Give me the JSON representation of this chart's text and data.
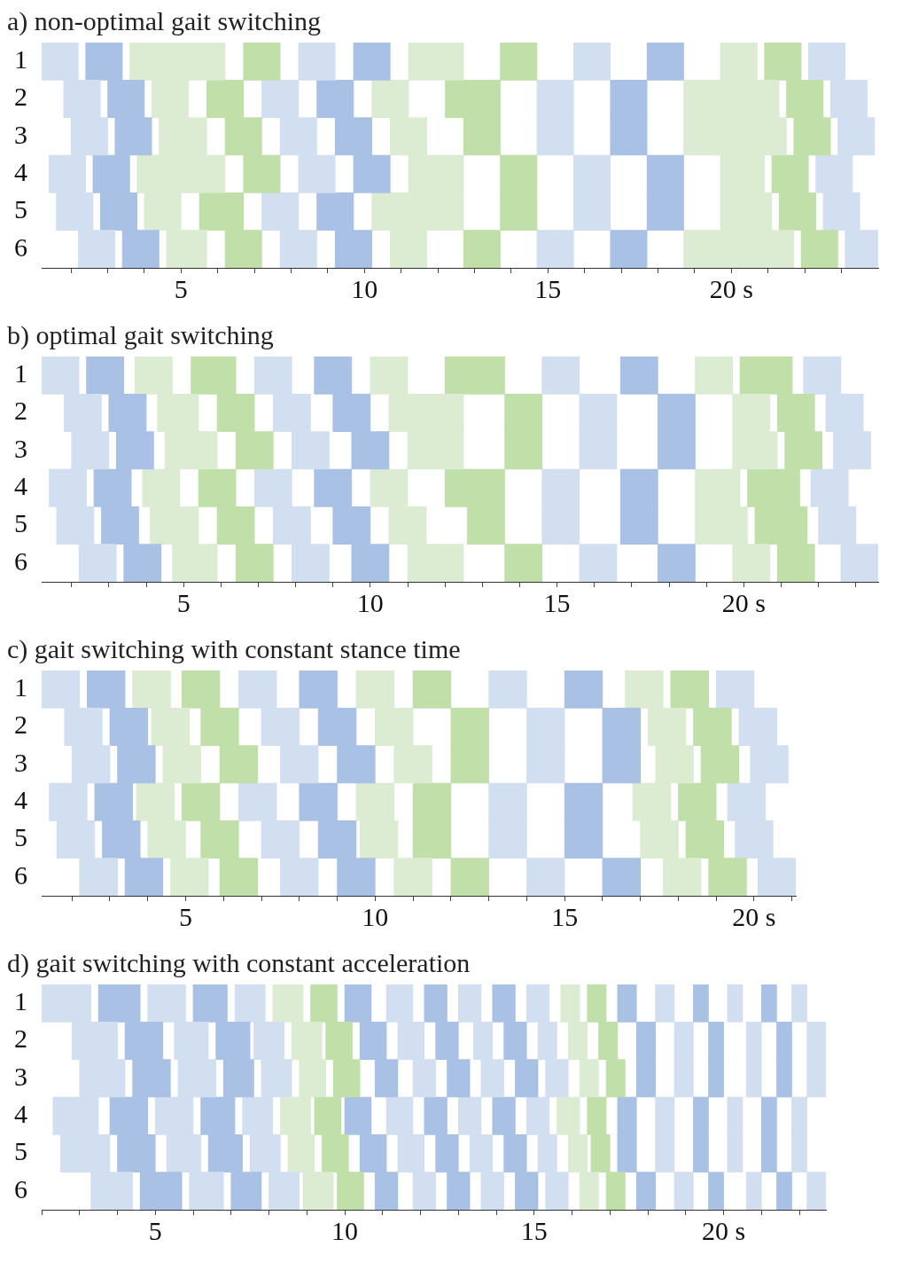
{
  "chart_data": [
    {
      "type": "bar",
      "orientation": "horizontal",
      "title": "a) non-optimal gait switching",
      "categories": [
        "1",
        "2",
        "3",
        "4",
        "5",
        "6"
      ],
      "xlim": [
        1.2,
        24.0
      ],
      "xticks": [
        {
          "value": 2,
          "label": null
        },
        {
          "value": 3,
          "label": null
        },
        {
          "value": 4,
          "label": null
        },
        5,
        {
          "value": 6,
          "label": null
        },
        {
          "value": 7,
          "label": null
        },
        {
          "value": 8,
          "label": null
        },
        {
          "value": 9,
          "label": null
        },
        10,
        {
          "value": 11,
          "label": null
        },
        {
          "value": 12,
          "label": null
        },
        {
          "value": 13,
          "label": null
        },
        {
          "value": 14,
          "label": null
        },
        15,
        {
          "value": 16,
          "label": null
        },
        {
          "value": 17,
          "label": null
        },
        {
          "value": 18,
          "label": null
        },
        {
          "value": 19,
          "label": null
        },
        {
          "value": 20,
          "label": "20 s"
        },
        {
          "value": 21,
          "label": null
        },
        {
          "value": 22,
          "label": null
        },
        {
          "value": 23,
          "label": null
        }
      ],
      "series": [
        {
          "color": "#d2dff0",
          "base": [
            1.2,
            1.8,
            2.0,
            1.4,
            1.6,
            2.2
          ],
          "values": [
            1.0,
            1.0,
            1.0,
            1.0,
            1.0,
            1.0
          ]
        },
        {
          "color": "#a9c1e4",
          "base": [
            2.4,
            3.0,
            3.2,
            2.6,
            2.8,
            3.4
          ],
          "values": [
            1.0,
            1.0,
            1.0,
            1.0,
            1.0,
            1.0
          ]
        },
        {
          "color": "#dcecd2",
          "base": [
            3.6,
            4.2,
            4.4,
            3.8,
            4.0,
            4.6
          ],
          "values": [
            2.6,
            1.0,
            1.3,
            2.4,
            1.0,
            1.1
          ]
        },
        {
          "color": "#c0dfa9",
          "base": [
            6.7,
            5.7,
            6.2,
            6.7,
            5.5,
            6.2
          ],
          "values": [
            1.0,
            1.0,
            1.0,
            1.0,
            1.2,
            1.0
          ]
        },
        {
          "color": "#d2dff0",
          "base": [
            8.2,
            7.2,
            7.7,
            8.2,
            7.2,
            7.7
          ],
          "values": [
            1.0,
            1.0,
            1.0,
            1.0,
            1.0,
            1.0
          ]
        },
        {
          "color": "#a9c1e4",
          "base": [
            9.7,
            8.7,
            9.2,
            9.7,
            8.7,
            9.2
          ],
          "values": [
            1.0,
            1.0,
            1.0,
            1.0,
            1.0,
            1.0
          ]
        },
        {
          "color": "#dcecd2",
          "base": [
            11.2,
            10.2,
            10.7,
            11.2,
            10.2,
            10.7
          ],
          "values": [
            1.5,
            1.0,
            1.0,
            1.5,
            2.5,
            1.0
          ]
        },
        {
          "color": "#c0dfa9",
          "base": [
            13.7,
            12.2,
            12.7,
            13.7,
            13.7,
            12.7
          ],
          "values": [
            1.0,
            1.5,
            1.0,
            1.0,
            1.0,
            1.0
          ]
        },
        {
          "color": "#d2dff0",
          "base": [
            15.7,
            14.7,
            14.7,
            15.7,
            15.7,
            14.7
          ],
          "values": [
            1.0,
            1.0,
            1.0,
            1.0,
            1.0,
            1.0
          ]
        },
        {
          "color": "#a9c1e4",
          "base": [
            17.7,
            16.7,
            16.7,
            17.7,
            17.7,
            16.7
          ],
          "values": [
            1.0,
            1.0,
            1.0,
            1.0,
            1.0,
            1.0
          ]
        },
        {
          "color": "#dcecd2",
          "base": [
            19.7,
            18.7,
            18.7,
            19.7,
            19.7,
            18.7
          ],
          "values": [
            1.0,
            2.6,
            2.8,
            1.2,
            1.4,
            3.0
          ]
        },
        {
          "color": "#c0dfa9",
          "base": [
            20.9,
            21.5,
            21.7,
            21.1,
            21.3,
            21.9
          ],
          "values": [
            1.0,
            1.0,
            1.0,
            1.0,
            1.0,
            1.0
          ]
        },
        {
          "color": "#d2dff0",
          "base": [
            22.1,
            22.7,
            22.9,
            22.3,
            22.5,
            23.1
          ],
          "values": [
            1.0,
            1.0,
            1.0,
            1.0,
            1.0,
            0.9
          ]
        }
      ]
    },
    {
      "type": "bar",
      "orientation": "horizontal",
      "title": "b) optimal gait switching",
      "categories": [
        "1",
        "2",
        "3",
        "4",
        "5",
        "6"
      ],
      "xlim": [
        1.2,
        23.6
      ],
      "xticks": [
        {
          "value": 2,
          "label": null
        },
        {
          "value": 3,
          "label": null
        },
        {
          "value": 4,
          "label": null
        },
        5,
        {
          "value": 6,
          "label": null
        },
        {
          "value": 7,
          "label": null
        },
        {
          "value": 8,
          "label": null
        },
        {
          "value": 9,
          "label": null
        },
        10,
        {
          "value": 11,
          "label": null
        },
        {
          "value": 12,
          "label": null
        },
        {
          "value": 13,
          "label": null
        },
        {
          "value": 14,
          "label": null
        },
        15,
        {
          "value": 16,
          "label": null
        },
        {
          "value": 17,
          "label": null
        },
        {
          "value": 18,
          "label": null
        },
        {
          "value": 19,
          "label": null
        },
        {
          "value": 20,
          "label": "20 s"
        },
        {
          "value": 21,
          "label": null
        },
        {
          "value": 22,
          "label": null
        },
        {
          "value": 23,
          "label": null
        }
      ],
      "series": [
        {
          "color": "#d2dff0",
          "base": [
            1.2,
            1.8,
            2.0,
            1.4,
            1.6,
            2.2
          ],
          "values": [
            1.0,
            1.0,
            1.0,
            1.0,
            1.0,
            1.0
          ]
        },
        {
          "color": "#a9c1e4",
          "base": [
            2.4,
            3.0,
            3.2,
            2.6,
            2.8,
            3.4
          ],
          "values": [
            1.0,
            1.0,
            1.0,
            1.0,
            1.0,
            1.0
          ]
        },
        {
          "color": "#dcecd2",
          "base": [
            3.7,
            4.3,
            4.5,
            3.9,
            4.1,
            4.7
          ],
          "values": [
            1.0,
            1.1,
            1.4,
            1.0,
            1.3,
            1.2
          ]
        },
        {
          "color": "#c0dfa9",
          "base": [
            5.2,
            5.9,
            6.4,
            5.4,
            5.9,
            6.4
          ],
          "values": [
            1.2,
            1.0,
            1.0,
            1.0,
            1.0,
            1.0
          ]
        },
        {
          "color": "#d2dff0",
          "base": [
            6.9,
            7.4,
            7.9,
            6.9,
            7.4,
            7.9
          ],
          "values": [
            1.0,
            1.0,
            1.0,
            1.0,
            1.0,
            1.0
          ]
        },
        {
          "color": "#a9c1e4",
          "base": [
            8.5,
            9.0,
            9.5,
            8.5,
            9.0,
            9.5
          ],
          "values": [
            1.0,
            1.0,
            1.0,
            1.0,
            1.0,
            1.0
          ]
        },
        {
          "color": "#dcecd2",
          "base": [
            10.0,
            10.5,
            11.0,
            10.0,
            10.5,
            11.0
          ],
          "values": [
            1.0,
            2.0,
            1.5,
            1.0,
            1.0,
            1.5
          ]
        },
        {
          "color": "#c0dfa9",
          "base": [
            12.0,
            13.6,
            13.6,
            12.0,
            12.6,
            13.6
          ],
          "values": [
            1.6,
            1.0,
            1.0,
            1.6,
            1.0,
            1.0
          ]
        },
        {
          "color": "#d2dff0",
          "base": [
            14.6,
            15.6,
            15.6,
            14.6,
            14.6,
            15.6
          ],
          "values": [
            1.0,
            1.0,
            1.0,
            1.0,
            1.0,
            1.0
          ]
        },
        {
          "color": "#a9c1e4",
          "base": [
            16.7,
            17.7,
            17.7,
            16.7,
            16.7,
            17.7
          ],
          "values": [
            1.0,
            1.0,
            1.0,
            1.0,
            1.0,
            1.0
          ]
        },
        {
          "color": "#dcecd2",
          "base": [
            18.7,
            19.7,
            19.7,
            18.7,
            18.7,
            19.7
          ],
          "values": [
            1.0,
            1.0,
            1.2,
            1.2,
            1.4,
            1.0
          ]
        },
        {
          "color": "#c0dfa9",
          "base": [
            19.9,
            20.9,
            21.1,
            20.1,
            20.3,
            20.9
          ],
          "values": [
            1.4,
            1.0,
            1.0,
            1.4,
            1.4,
            1.0
          ]
        },
        {
          "color": "#d2dff0",
          "base": [
            21.6,
            22.2,
            22.4,
            21.8,
            22.0,
            22.6
          ],
          "values": [
            1.0,
            1.0,
            1.0,
            1.0,
            1.0,
            1.0
          ]
        }
      ]
    },
    {
      "type": "bar",
      "orientation": "horizontal",
      "title": "c) gait switching with constant stance time",
      "categories": [
        "1",
        "2",
        "3",
        "4",
        "5",
        "6"
      ],
      "xlim": [
        1.2,
        21.1
      ],
      "xticks": [
        {
          "value": 2,
          "label": null
        },
        {
          "value": 3,
          "label": null
        },
        {
          "value": 4,
          "label": null
        },
        5,
        {
          "value": 6,
          "label": null
        },
        {
          "value": 7,
          "label": null
        },
        {
          "value": 8,
          "label": null
        },
        {
          "value": 9,
          "label": null
        },
        10,
        {
          "value": 11,
          "label": null
        },
        {
          "value": 12,
          "label": null
        },
        {
          "value": 13,
          "label": null
        },
        {
          "value": 14,
          "label": null
        },
        15,
        {
          "value": 16,
          "label": null
        },
        {
          "value": 17,
          "label": null
        },
        {
          "value": 18,
          "label": null
        },
        {
          "value": 19,
          "label": null
        },
        {
          "value": 20,
          "label": "20 s"
        },
        {
          "value": 21,
          "label": null
        }
      ],
      "series": [
        {
          "color": "#d2dff0",
          "base": [
            1.2,
            1.8,
            2.0,
            1.4,
            1.6,
            2.2
          ],
          "values": [
            1.0,
            1.0,
            1.0,
            1.0,
            1.0,
            1.0
          ]
        },
        {
          "color": "#a9c1e4",
          "base": [
            2.4,
            3.0,
            3.2,
            2.6,
            2.8,
            3.4
          ],
          "values": [
            1.0,
            1.0,
            1.0,
            1.0,
            1.0,
            1.0
          ]
        },
        {
          "color": "#dcecd2",
          "base": [
            3.6,
            4.1,
            4.4,
            3.7,
            4.0,
            4.6
          ],
          "values": [
            1.0,
            1.0,
            1.0,
            1.0,
            1.0,
            1.0
          ]
        },
        {
          "color": "#c0dfa9",
          "base": [
            4.9,
            5.4,
            5.9,
            4.9,
            5.4,
            5.9
          ],
          "values": [
            1.0,
            1.0,
            1.0,
            1.0,
            1.0,
            1.0
          ]
        },
        {
          "color": "#d2dff0",
          "base": [
            6.4,
            7.0,
            7.5,
            6.4,
            7.0,
            7.5
          ],
          "values": [
            1.0,
            1.0,
            1.0,
            1.0,
            1.0,
            1.0
          ]
        },
        {
          "color": "#a9c1e4",
          "base": [
            8.0,
            8.5,
            9.0,
            8.0,
            8.5,
            9.0
          ],
          "values": [
            1.0,
            1.0,
            1.0,
            1.0,
            1.0,
            1.0
          ]
        },
        {
          "color": "#dcecd2",
          "base": [
            9.5,
            10.0,
            10.5,
            9.5,
            9.6,
            10.5
          ],
          "values": [
            1.0,
            1.0,
            1.0,
            1.0,
            1.0,
            1.0
          ]
        },
        {
          "color": "#c0dfa9",
          "base": [
            11.0,
            12.0,
            12.0,
            11.0,
            11.0,
            12.0
          ],
          "values": [
            1.0,
            1.0,
            1.0,
            1.0,
            1.0,
            1.0
          ]
        },
        {
          "color": "#d2dff0",
          "base": [
            13.0,
            14.0,
            14.0,
            13.0,
            13.0,
            14.0
          ],
          "values": [
            1.0,
            1.0,
            1.0,
            1.0,
            1.0,
            1.0
          ]
        },
        {
          "color": "#a9c1e4",
          "base": [
            15.0,
            16.0,
            16.0,
            15.0,
            15.0,
            16.0
          ],
          "values": [
            1.0,
            1.0,
            1.0,
            1.0,
            1.0,
            1.0
          ]
        },
        {
          "color": "#dcecd2",
          "base": [
            16.6,
            17.2,
            17.4,
            16.8,
            17.0,
            17.6
          ],
          "values": [
            1.0,
            1.0,
            1.0,
            1.0,
            1.0,
            1.0
          ]
        },
        {
          "color": "#c0dfa9",
          "base": [
            17.8,
            18.4,
            18.6,
            18.0,
            18.2,
            18.8
          ],
          "values": [
            1.0,
            1.0,
            1.0,
            1.0,
            1.0,
            1.0
          ]
        },
        {
          "color": "#d2dff0",
          "base": [
            19.0,
            19.6,
            19.9,
            19.3,
            19.5,
            20.1
          ],
          "values": [
            1.0,
            1.0,
            1.0,
            1.0,
            1.0,
            1.0
          ]
        }
      ]
    },
    {
      "type": "bar",
      "orientation": "horizontal",
      "title": "d) gait switching with constant acceleration",
      "categories": [
        "1",
        "2",
        "3",
        "4",
        "5",
        "6"
      ],
      "xlim": [
        2.0,
        22.7
      ],
      "xticks": [
        {
          "value": 2,
          "label": null
        },
        {
          "value": 3,
          "label": null
        },
        {
          "value": 4,
          "label": null
        },
        5,
        {
          "value": 6,
          "label": null
        },
        {
          "value": 7,
          "label": null
        },
        {
          "value": 8,
          "label": null
        },
        {
          "value": 9,
          "label": null
        },
        10,
        {
          "value": 11,
          "label": null
        },
        {
          "value": 12,
          "label": null
        },
        {
          "value": 13,
          "label": null
        },
        {
          "value": 14,
          "label": null
        },
        15,
        {
          "value": 16,
          "label": null
        },
        {
          "value": 17,
          "label": null
        },
        {
          "value": 18,
          "label": null
        },
        {
          "value": 19,
          "label": null
        },
        {
          "value": 20,
          "label": "20 s"
        },
        {
          "value": 21,
          "label": null
        },
        {
          "value": 22,
          "label": null
        }
      ],
      "series": [
        {
          "color": "#d2dff0",
          "base": [
            2.0,
            2.8,
            3.0,
            2.3,
            2.5,
            3.3
          ],
          "values": [
            1.3,
            1.2,
            1.2,
            1.2,
            1.3,
            1.1
          ]
        },
        {
          "color": "#a9c1e4",
          "base": [
            3.5,
            4.2,
            4.4,
            3.8,
            4.0,
            4.6
          ],
          "values": [
            1.1,
            1.0,
            1.0,
            1.0,
            1.0,
            1.1
          ]
        },
        {
          "color": "#d2dff0",
          "base": [
            4.8,
            5.5,
            5.6,
            5.0,
            5.3,
            5.9
          ],
          "values": [
            1.0,
            0.9,
            1.0,
            1.0,
            0.9,
            0.9
          ]
        },
        {
          "color": "#a9c1e4",
          "base": [
            6.0,
            6.6,
            6.8,
            6.2,
            6.4,
            7.0
          ],
          "values": [
            0.9,
            0.9,
            0.8,
            0.9,
            0.9,
            0.8
          ]
        },
        {
          "color": "#d2dff0",
          "base": [
            7.1,
            7.6,
            7.8,
            7.3,
            7.5,
            8.0
          ],
          "values": [
            0.8,
            0.8,
            0.8,
            0.8,
            0.8,
            0.8
          ]
        },
        {
          "color": "#dcecd2",
          "base": [
            8.1,
            8.6,
            8.8,
            8.3,
            8.5,
            8.9
          ],
          "values": [
            0.8,
            0.8,
            0.7,
            0.8,
            0.7,
            0.8
          ]
        },
        {
          "color": "#c0dfa9",
          "base": [
            9.1,
            9.5,
            9.7,
            9.2,
            9.4,
            9.8
          ],
          "values": [
            0.7,
            0.7,
            0.7,
            0.7,
            0.7,
            0.7
          ]
        },
        {
          "color": "#a9c1e4",
          "base": [
            10.0,
            10.4,
            10.8,
            10.0,
            10.4,
            10.8
          ],
          "values": [
            0.7,
            0.7,
            0.6,
            0.7,
            0.7,
            0.6
          ]
        },
        {
          "color": "#d2dff0",
          "base": [
            11.1,
            11.4,
            11.8,
            11.1,
            11.4,
            11.8
          ],
          "values": [
            0.7,
            0.7,
            0.6,
            0.7,
            0.7,
            0.6
          ]
        },
        {
          "color": "#a9c1e4",
          "base": [
            12.1,
            12.4,
            12.7,
            12.1,
            12.4,
            12.7
          ],
          "values": [
            0.6,
            0.6,
            0.6,
            0.6,
            0.6,
            0.6
          ]
        },
        {
          "color": "#d2dff0",
          "base": [
            13.0,
            13.4,
            13.6,
            13.0,
            13.3,
            13.6
          ],
          "values": [
            0.6,
            0.5,
            0.6,
            0.6,
            0.6,
            0.6
          ]
        },
        {
          "color": "#a9c1e4",
          "base": [
            13.9,
            14.2,
            14.5,
            13.9,
            14.2,
            14.5
          ],
          "values": [
            0.6,
            0.6,
            0.6,
            0.6,
            0.6,
            0.6
          ]
        },
        {
          "color": "#d2dff0",
          "base": [
            14.8,
            15.1,
            15.3,
            14.8,
            15.1,
            15.3
          ],
          "values": [
            0.6,
            0.5,
            0.6,
            0.6,
            0.5,
            0.6
          ]
        },
        {
          "color": "#dcecd2",
          "base": [
            15.7,
            15.9,
            16.2,
            15.6,
            15.9,
            16.2
          ],
          "values": [
            0.5,
            0.5,
            0.5,
            0.6,
            0.5,
            0.5
          ]
        },
        {
          "color": "#c0dfa9",
          "base": [
            16.4,
            16.7,
            16.9,
            16.4,
            16.5,
            16.9
          ],
          "values": [
            0.5,
            0.5,
            0.5,
            0.5,
            0.5,
            0.5
          ]
        },
        {
          "color": "#a9c1e4",
          "base": [
            17.2,
            17.7,
            17.7,
            17.2,
            17.2,
            17.7
          ],
          "values": [
            0.5,
            0.5,
            0.5,
            0.5,
            0.5,
            0.5
          ]
        },
        {
          "color": "#d2dff0",
          "base": [
            18.2,
            18.7,
            18.7,
            18.2,
            18.2,
            18.7
          ],
          "values": [
            0.5,
            0.5,
            0.5,
            0.5,
            0.5,
            0.5
          ]
        },
        {
          "color": "#a9c1e4",
          "base": [
            19.2,
            19.6,
            19.6,
            19.2,
            19.2,
            19.6
          ],
          "values": [
            0.4,
            0.4,
            0.4,
            0.4,
            0.4,
            0.4
          ]
        },
        {
          "color": "#d2dff0",
          "base": [
            20.1,
            20.6,
            20.6,
            20.1,
            20.1,
            20.6
          ],
          "values": [
            0.4,
            0.4,
            0.4,
            0.4,
            0.4,
            0.4
          ]
        },
        {
          "color": "#a9c1e4",
          "base": [
            21.0,
            21.4,
            21.4,
            21.0,
            21.0,
            21.4
          ],
          "values": [
            0.4,
            0.4,
            0.4,
            0.4,
            0.4,
            0.4
          ]
        },
        {
          "color": "#d2dff0",
          "base": [
            21.8,
            22.2,
            22.2,
            21.8,
            21.8,
            22.2
          ],
          "values": [
            0.4,
            0.5,
            0.5,
            0.4,
            0.4,
            0.5
          ]
        }
      ]
    }
  ]
}
